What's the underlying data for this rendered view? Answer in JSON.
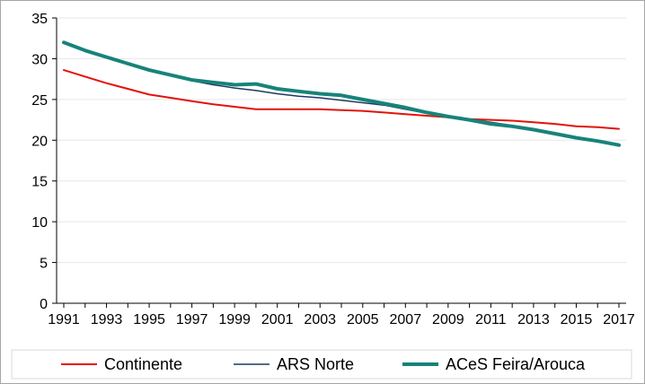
{
  "chart_data": {
    "type": "line",
    "title": "",
    "xlabel": "",
    "ylabel": "",
    "x": [
      1991,
      1992,
      1993,
      1994,
      1995,
      1996,
      1997,
      1998,
      1999,
      2000,
      2001,
      2002,
      2003,
      2004,
      2005,
      2006,
      2007,
      2008,
      2009,
      2010,
      2011,
      2012,
      2013,
      2014,
      2015,
      2016,
      2017
    ],
    "xticks": [
      "1991",
      "1993",
      "1995",
      "1997",
      "1999",
      "2001",
      "2003",
      "2005",
      "2007",
      "2009",
      "2011",
      "2013",
      "2015",
      "2017"
    ],
    "yticks": [
      "0",
      "5",
      "10",
      "15",
      "20",
      "25",
      "30",
      "35"
    ],
    "ylim": [
      0,
      35
    ],
    "grid": "horizontal",
    "legend_position": "bottom",
    "series": [
      {
        "name": "Continente",
        "color": "#e3120b",
        "values": [
          28.6,
          27.8,
          27.0,
          26.3,
          25.6,
          25.2,
          24.8,
          24.4,
          24.1,
          23.8,
          23.8,
          23.8,
          23.8,
          23.7,
          23.6,
          23.4,
          23.2,
          23.0,
          22.8,
          22.6,
          22.5,
          22.4,
          22.2,
          22.0,
          21.7,
          21.6,
          21.4
        ]
      },
      {
        "name": "ARS Norte",
        "color": "#1f3864",
        "values": [
          31.9,
          31.0,
          30.2,
          29.5,
          28.6,
          27.9,
          27.3,
          26.8,
          26.4,
          26.1,
          25.7,
          25.4,
          25.2,
          24.9,
          24.6,
          24.3,
          23.8,
          23.3,
          23.0,
          22.6,
          22.2,
          21.8,
          21.4,
          20.8,
          20.3,
          19.9,
          19.3
        ]
      },
      {
        "name": "ACeS Feira/Arouca",
        "color": "#17837a",
        "values": [
          32.0,
          31.0,
          30.2,
          29.4,
          28.6,
          28.0,
          27.4,
          27.1,
          26.8,
          26.9,
          26.3,
          26.0,
          25.7,
          25.5,
          25.0,
          24.5,
          24.0,
          23.4,
          22.9,
          22.5,
          22.0,
          21.7,
          21.3,
          20.8,
          20.3,
          19.9,
          19.4
        ]
      }
    ]
  }
}
